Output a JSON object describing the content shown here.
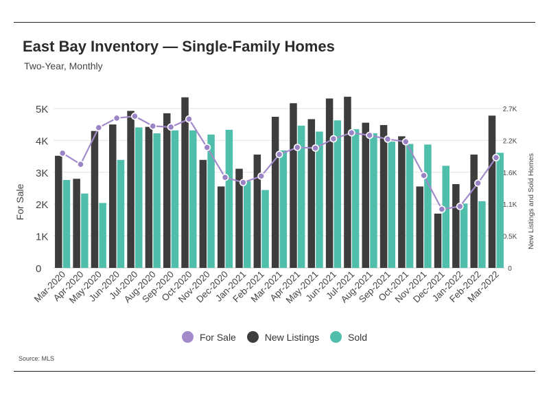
{
  "title": "East Bay Inventory — Single-Family Homes",
  "subtitle": "Two-Year, Monthly",
  "source": "Source:  MLS",
  "legend": {
    "for_sale": "For Sale",
    "new_listings": "New Listings",
    "sold": "Sold"
  },
  "colors": {
    "for_sale": "#a28acb",
    "for_sale_marker": "#9b84c6",
    "new_listings": "#3d3d3d",
    "sold": "#4fbeab",
    "grid": "#e3e3e3",
    "rule": "#222222"
  },
  "chart_data": {
    "type": "bar",
    "categories": [
      "Mar-2020",
      "Apr-2020",
      "May-2020",
      "Jun-2020",
      "Jul-2020",
      "Aug-2020",
      "Sep-2020",
      "Oct-2020",
      "Nov-2020",
      "Dec-2020",
      "Jan-2021",
      "Feb-2021",
      "Mar-2021",
      "Apr-2021",
      "May-2021",
      "Jun-2021",
      "Jul-2021",
      "Aug-2021",
      "Sep-2021",
      "Oct-2021",
      "Nov-2021",
      "Dec-2021",
      "Jan-2022",
      "Feb-2022",
      "Mar-2022"
    ],
    "left_axis": {
      "label": "For Sale",
      "ylim": [
        0,
        5000
      ],
      "ticks": [
        0,
        1000,
        2000,
        3000,
        4000,
        5000
      ],
      "tick_labels": [
        "0",
        "1K",
        "2K",
        "3K",
        "4K",
        "5K"
      ]
    },
    "right_axis": {
      "label": "New Listings and Sold Homes",
      "ylim": [
        0,
        2700
      ],
      "ticks": [
        0,
        540,
        1080,
        1620,
        2160,
        2700
      ],
      "tick_labels": [
        "0",
        "0.5K",
        "1.1K",
        "1.6K",
        "2.2K",
        "2.7K"
      ]
    },
    "grid": true,
    "legend_position": "bottom",
    "series": [
      {
        "name": "For Sale",
        "type": "line",
        "axis": "left",
        "values": [
          3600,
          3250,
          4400,
          4700,
          4760,
          4450,
          4420,
          4670,
          3780,
          2840,
          2680,
          2880,
          3560,
          3780,
          3760,
          4050,
          4240,
          4160,
          4040,
          3960,
          2900,
          1840,
          1930,
          2660,
          3460
        ]
      },
      {
        "name": "New Listings",
        "type": "bar",
        "axis": "right",
        "values": [
          1900,
          1510,
          2320,
          2430,
          2660,
          2390,
          2620,
          2890,
          1830,
          1380,
          1680,
          1920,
          2560,
          2790,
          2520,
          2870,
          2900,
          2460,
          2420,
          2230,
          1380,
          920,
          1420,
          1920,
          2580
        ]
      },
      {
        "name": "Sold",
        "type": "bar",
        "axis": "right",
        "values": [
          1490,
          1260,
          1100,
          1830,
          2380,
          2280,
          2330,
          2330,
          2260,
          2340,
          1470,
          1320,
          1990,
          2410,
          2310,
          2500,
          2350,
          2280,
          2140,
          2100,
          2090,
          1730,
          1090,
          1130,
          1950
        ]
      }
    ]
  }
}
